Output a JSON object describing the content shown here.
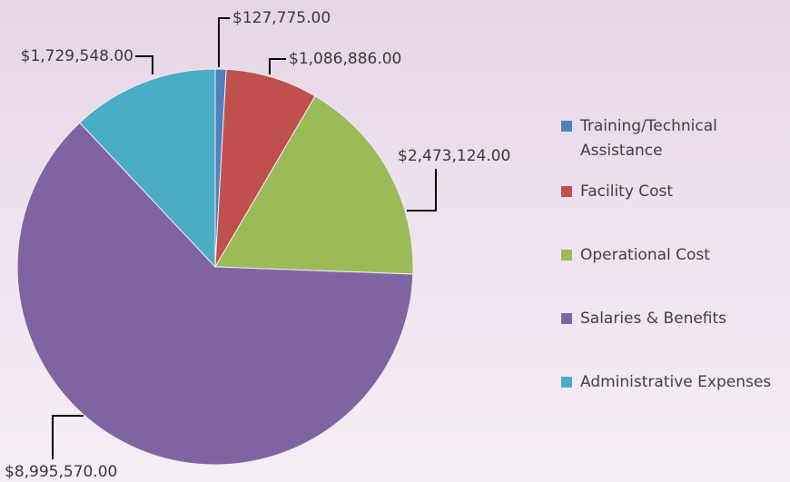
{
  "chart_data": {
    "type": "pie",
    "categories": [
      "Training/Technical Assistance",
      "Facility Cost",
      "Operational Cost",
      "Salaries & Benefits",
      "Administrative Expenses"
    ],
    "values": [
      127775,
      1086886,
      2473124,
      8995570,
      1729548
    ],
    "value_labels": [
      "$127,775.00",
      "$1,086,886.00",
      "$2,473,124.00",
      "$8,995,570.00",
      "$1,729,548.00"
    ],
    "colors": [
      "#4f81bd",
      "#c0504d",
      "#9bbb59",
      "#8064a2",
      "#4bacc6"
    ],
    "legend": "right"
  }
}
